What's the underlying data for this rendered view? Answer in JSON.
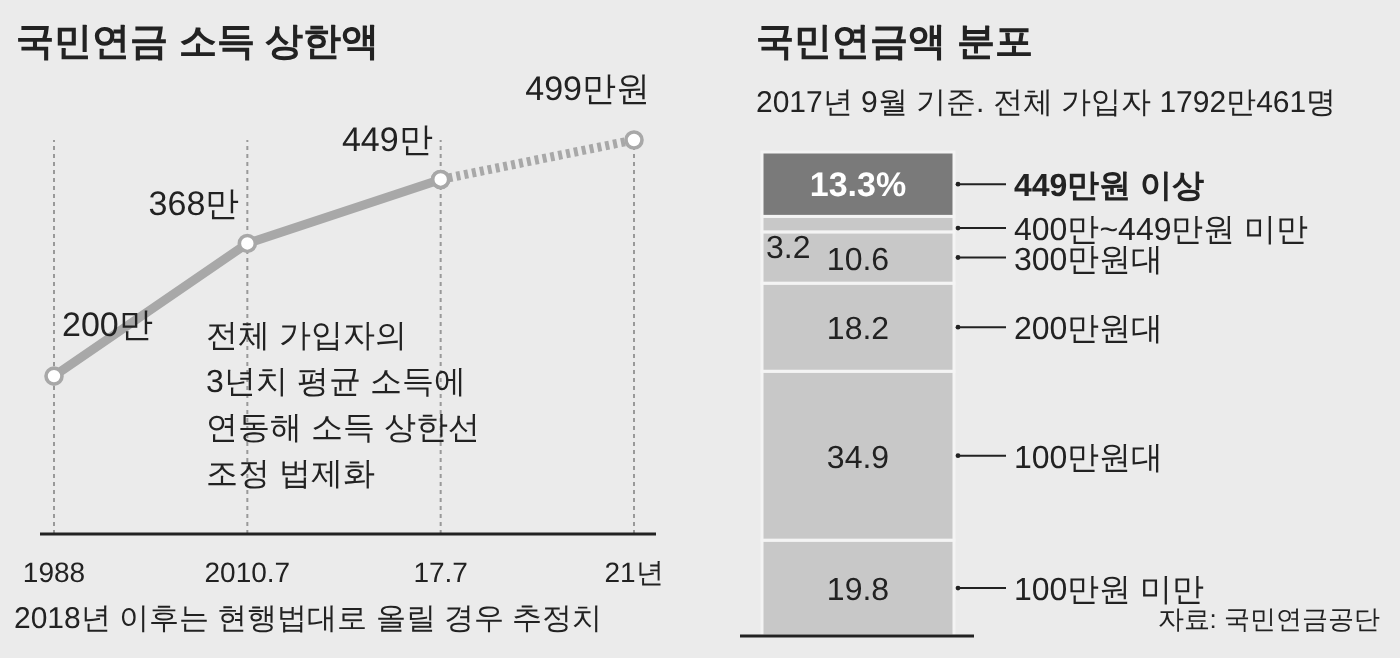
{
  "chart_data": [
    {
      "type": "line",
      "title": "국민연금 소득 상한액",
      "categories": [
        "1988",
        "2010.7",
        "17.7",
        "21년"
      ],
      "marker": "circle",
      "series": [
        {
          "color": "#a8a8a8",
          "values": [
            200,
            368,
            449,
            null
          ],
          "value_labels": [
            "200만",
            "368만",
            "449만",
            null
          ]
        },
        {
          "color": "#a8a8a8",
          "line_style": "dotted",
          "values": [
            null,
            null,
            449,
            499
          ],
          "value_labels": [
            null,
            null,
            null,
            "499만원"
          ]
        }
      ],
      "ref_lines": [
        {
          "axis": "x",
          "value": "1988",
          "line_style": "dotted",
          "color": "#999999"
        },
        {
          "axis": "x",
          "value": "2010.7",
          "line_style": "dotted",
          "color": "#999999"
        },
        {
          "axis": "x",
          "value": "17.7",
          "line_style": "dotted",
          "color": "#999999"
        },
        {
          "axis": "x",
          "value": "21년",
          "line_style": "dotted",
          "color": "#999999"
        }
      ],
      "annotations": [
        "전체 가입자의\n3년치 평균 소득에\n연동해 소득 상한선\n조정 법제화",
        "2018년 이후는 현행법대로 올릴 경우 추정치"
      ]
    },
    {
      "type": "bar",
      "stacked": true,
      "title": "국민연금액 분포",
      "subtitle": "2017년 9월 기준. 전체 가입자 1792만461명",
      "categories": [
        null
      ],
      "series": [
        {
          "name": "100만원 미만",
          "color": "#c8c8c8",
          "values": [
            19.8
          ],
          "value_labels": [
            "19.8"
          ]
        },
        {
          "name": "100만원대",
          "color": "#c8c8c8",
          "values": [
            34.9
          ],
          "value_labels": [
            "34.9"
          ]
        },
        {
          "name": "200만원대",
          "color": "#c8c8c8",
          "values": [
            18.2
          ],
          "value_labels": [
            "18.2"
          ]
        },
        {
          "name": "300만원대",
          "color": "#c8c8c8",
          "values": [
            10.6
          ],
          "value_labels": [
            "10.6"
          ]
        },
        {
          "name": "400만~449만원 미만",
          "color": "#c8c8c8",
          "values": [
            3.2
          ],
          "value_labels": [
            "3.2"
          ]
        },
        {
          "name": "449만원 이상",
          "color": "#7a7a7a",
          "values": [
            13.3
          ],
          "value_labels": [
            "13.3%"
          ]
        }
      ],
      "annotations": [
        "자료: 국민연금공단"
      ]
    }
  ]
}
